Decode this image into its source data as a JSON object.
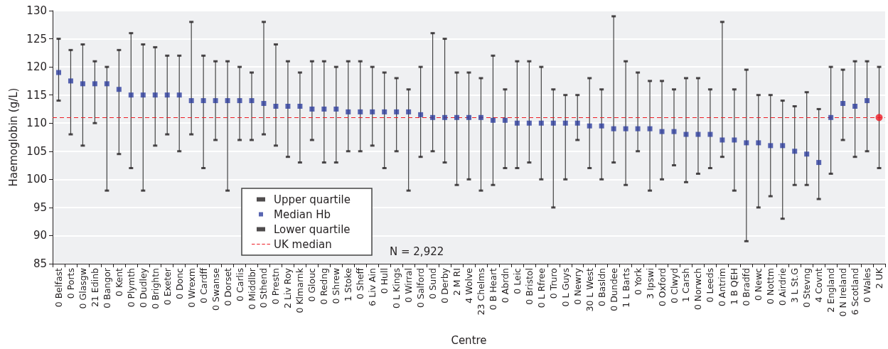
{
  "chart_data": {
    "type": "scatter",
    "xlabel": "Centre",
    "ylabel": "Haemoglobin (g/L)",
    "categories": [
      "0 Belfast",
      "0 Ports",
      "0 Glasgw",
      "21 Edinb",
      "0 Bangor",
      "0 Kent",
      "0 Plymth",
      "0 Dudley",
      "0 Brightn",
      "0 Exeter",
      "0 Donc",
      "0 Wrexm",
      "0 Cardff",
      "0 Swanse",
      "0 Dorset",
      "0 Carlis",
      "0 Middlbr",
      "0 Sthend",
      "0 Prestn",
      "2 Liv Roy",
      "0 Klmarnk",
      "0 Glouc",
      "0 Redng",
      "0 Shrew",
      "1 Stoke",
      "0 Sheff",
      "6 Liv Ain",
      "0 Hull",
      "0 L Kings",
      "0 Wirral",
      "0 Salford",
      "0 Sund",
      "0 Derby",
      "2 M RI",
      "4 Wolve",
      "23 Chelms",
      "0 B Heart",
      "0 Abrdn",
      "0 Leic",
      "0 Bristol",
      "0 L Rfree",
      "0 Truro",
      "0 L Guys",
      "0 Newry",
      "30 L West",
      "0 Basldn",
      "0 Dundee",
      "1 L Barts",
      "0 York",
      "3 Ipswi",
      "0 Oxford",
      "0 Clwyd",
      "1 Carsh",
      "0 Norwch",
      "0 Leeds",
      "0 Antrim",
      "1 B QEH",
      "0 Bradfd",
      "0 Newc",
      "0 Nottm",
      "0 Airdrie",
      "3 L St.G",
      "0 Stevng",
      "4 Covnt",
      "2 England",
      "0 N Ireland",
      "6 Scotland",
      "0 Wales",
      "2 UK"
    ],
    "series": [
      {
        "name": "Upper quartile",
        "color": "#231f20",
        "marker": "square",
        "values": [
          125,
          123,
          124,
          121,
          120,
          123,
          126,
          124,
          123.5,
          122,
          122,
          128,
          122,
          121,
          121,
          120,
          119,
          128,
          124,
          121,
          119,
          121,
          121,
          120,
          121,
          121,
          120,
          119,
          118,
          116,
          120,
          126,
          125,
          119,
          119,
          118,
          122,
          116,
          121,
          121,
          120,
          116,
          115,
          115,
          118,
          116,
          129,
          121,
          119,
          117.5,
          117.5,
          116,
          118,
          118,
          116,
          128,
          116,
          119.5,
          115,
          115,
          114,
          113,
          115.5,
          112.5,
          120,
          119.5,
          121,
          121,
          120
        ]
      },
      {
        "name": "Median Hb",
        "color": "#2e3f9e",
        "marker": "square",
        "values": [
          119,
          117.5,
          117,
          117,
          117,
          116,
          115,
          115,
          115,
          115,
          115,
          114,
          114,
          114,
          114,
          114,
          114,
          113.5,
          113,
          113,
          113,
          112.5,
          112.5,
          112.5,
          112,
          112,
          112,
          112,
          112,
          112,
          111.5,
          111,
          111,
          111,
          111,
          111,
          110.5,
          110.5,
          110,
          110,
          110,
          110,
          110,
          110,
          109.5,
          109.5,
          109,
          109,
          109,
          109,
          108.5,
          108.5,
          108,
          108,
          108,
          107,
          107,
          106.5,
          106.5,
          106,
          106,
          105,
          104.5,
          103,
          111,
          113.5,
          113,
          114,
          null
        ]
      },
      {
        "name": "Lower quartile",
        "color": "#231f20",
        "marker": "square",
        "values": [
          114,
          108,
          106,
          110,
          98,
          104.5,
          102,
          98,
          106,
          108,
          105,
          108,
          102,
          107,
          98,
          107,
          107,
          108,
          106,
          104,
          103,
          107,
          103,
          103,
          105,
          105,
          106,
          102,
          105,
          98,
          104,
          105,
          103,
          99,
          100,
          98,
          99,
          102,
          102,
          103,
          100,
          95,
          100,
          107,
          102,
          100,
          103,
          99,
          105,
          98,
          100,
          102.5,
          99.5,
          101,
          102,
          104,
          98,
          89,
          95,
          97,
          93,
          99,
          99,
          96.5,
          101,
          107,
          104,
          105,
          102
        ]
      },
      {
        "color": "#ed1c24",
        "marker": "circle",
        "values": [
          null,
          null,
          null,
          null,
          null,
          null,
          null,
          null,
          null,
          null,
          null,
          null,
          null,
          null,
          null,
          null,
          null,
          null,
          null,
          null,
          null,
          null,
          null,
          null,
          null,
          null,
          null,
          null,
          null,
          null,
          null,
          null,
          null,
          null,
          null,
          null,
          null,
          null,
          null,
          null,
          null,
          null,
          null,
          null,
          null,
          null,
          null,
          null,
          null,
          null,
          null,
          null,
          null,
          null,
          null,
          null,
          null,
          null,
          null,
          null,
          null,
          null,
          null,
          null,
          null,
          null,
          null,
          null,
          111
        ]
      }
    ],
    "ylim": [
      85,
      130
    ],
    "yticks": [
      85,
      90,
      95,
      100,
      105,
      110,
      115,
      120,
      125,
      130
    ],
    "grid": "y",
    "legend": "bottom left",
    "ref_lines": [
      {
        "axis": "y",
        "value": 111,
        "label": "UK median",
        "color": "#ed1c24",
        "line_style": "dashed"
      }
    ],
    "annotations": [
      "N = 2,922"
    ]
  }
}
